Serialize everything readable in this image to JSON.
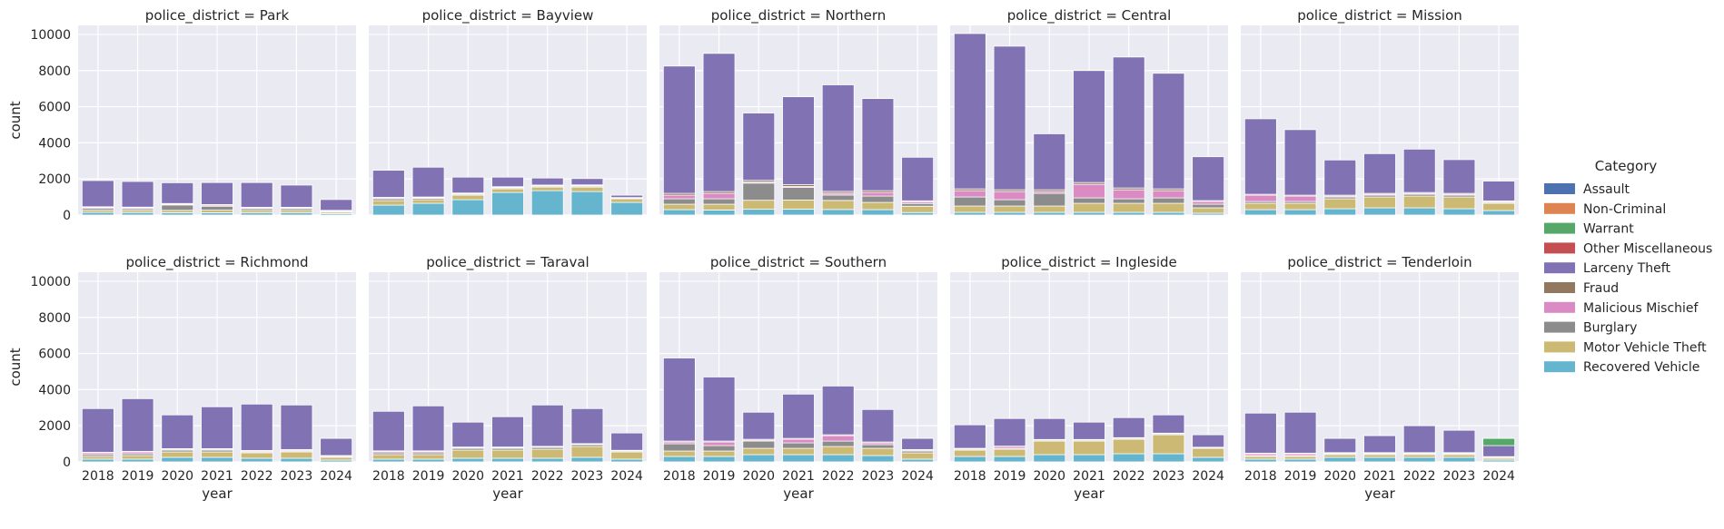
{
  "chart_data": {
    "type": "bar",
    "stacked": true,
    "facet_variable": "police_district",
    "xlabel": "year",
    "ylabel": "count",
    "ylim": [
      0,
      10500
    ],
    "yticks": [
      0,
      2000,
      4000,
      6000,
      8000,
      10000
    ],
    "categories": [
      "2018",
      "2019",
      "2020",
      "2021",
      "2022",
      "2023",
      "2024"
    ],
    "grid": true,
    "background": "#EAEAF2",
    "legend": {
      "title": "Category",
      "placement": "right"
    },
    "series": [
      {
        "name": "Assault",
        "color": "#4C72B0"
      },
      {
        "name": "Non-Criminal",
        "color": "#DD8452"
      },
      {
        "name": "Warrant",
        "color": "#55A868"
      },
      {
        "name": "Other Miscellaneous",
        "color": "#C44E52"
      },
      {
        "name": "Larceny Theft",
        "color": "#8172B3"
      },
      {
        "name": "Fraud",
        "color": "#937860"
      },
      {
        "name": "Malicious Mischief",
        "color": "#DA8BC3"
      },
      {
        "name": "Burglary",
        "color": "#8C8C8C"
      },
      {
        "name": "Motor Vehicle Theft",
        "color": "#CCB974"
      },
      {
        "name": "Recovered Vehicle",
        "color": "#64B5CD"
      }
    ],
    "panels": [
      {
        "title": "police_district = Park",
        "values": {
          "Recovered Vehicle": [
            150,
            140,
            130,
            130,
            120,
            120,
            80
          ],
          "Motor Vehicle Theft": [
            120,
            120,
            130,
            140,
            130,
            130,
            80
          ],
          "Burglary": [
            100,
            90,
            300,
            220,
            100,
            100,
            50
          ],
          "Malicious Mischief": [
            60,
            60,
            50,
            60,
            50,
            50,
            30
          ],
          "Fraud": [
            30,
            30,
            30,
            30,
            30,
            30,
            20
          ],
          "Larceny Theft": [
            1450,
            1420,
            1150,
            1220,
            1370,
            1230,
            600
          ]
        },
        "totals": [
          1950,
          1900,
          1850,
          1850,
          1850,
          1700,
          900
        ]
      },
      {
        "title": "police_district = Bayview",
        "values": {
          "Recovered Vehicle": [
            550,
            650,
            850,
            1250,
            1350,
            1300,
            700
          ],
          "Motor Vehicle Theft": [
            250,
            200,
            250,
            200,
            200,
            250,
            200
          ],
          "Burglary": [
            100,
            80,
            50,
            50,
            50,
            50,
            30
          ],
          "Malicious Mischief": [
            50,
            40,
            40,
            40,
            30,
            40,
            20
          ],
          "Fraud": [
            30,
            30,
            30,
            30,
            30,
            30,
            20
          ],
          "Larceny Theft": [
            1500,
            1650,
            880,
            530,
            390,
            350,
            130
          ]
        },
        "totals": [
          2480,
          2650,
          2100,
          2100,
          2050,
          2020,
          1100
        ]
      },
      {
        "title": "police_district = Northern",
        "values": {
          "Recovered Vehicle": [
            300,
            280,
            320,
            330,
            310,
            300,
            140
          ],
          "Motor Vehicle Theft": [
            300,
            320,
            500,
            500,
            500,
            400,
            350
          ],
          "Burglary": [
            300,
            300,
            950,
            700,
            300,
            350,
            150
          ],
          "Malicious Mischief": [
            200,
            300,
            50,
            50,
            100,
            200,
            100
          ],
          "Fraud": [
            100,
            100,
            100,
            100,
            100,
            100,
            50
          ],
          "Larceny Theft": [
            7050,
            7650,
            3730,
            4870,
            5900,
            5100,
            2410
          ]
        },
        "totals": [
          8250,
          8950,
          5650,
          6550,
          7210,
          6450,
          3200
        ]
      },
      {
        "title": "police_district = Central",
        "values": {
          "Recovered Vehicle": [
            150,
            150,
            150,
            150,
            150,
            150,
            100
          ],
          "Motor Vehicle Theft": [
            350,
            350,
            350,
            500,
            500,
            500,
            300
          ],
          "Burglary": [
            500,
            350,
            700,
            300,
            250,
            300,
            200
          ],
          "Malicious Mischief": [
            350,
            450,
            100,
            750,
            500,
            400,
            150
          ],
          "Fraud": [
            100,
            100,
            100,
            100,
            100,
            100,
            50
          ],
          "Larceny Theft": [
            8600,
            7950,
            3100,
            6200,
            7250,
            6400,
            2430
          ]
        },
        "totals": [
          10050,
          9350,
          4500,
          8000,
          8750,
          7850,
          3230
        ]
      },
      {
        "title": "police_district = Mission",
        "values": {
          "Recovered Vehicle": [
            300,
            300,
            350,
            400,
            400,
            350,
            250
          ],
          "Motor Vehicle Theft": [
            350,
            350,
            550,
            600,
            650,
            650,
            400
          ],
          "Burglary": [
            100,
            100,
            100,
            100,
            100,
            100,
            50
          ],
          "Malicious Mischief": [
            350,
            300,
            50,
            50,
            50,
            50,
            50
          ],
          "Fraud": [
            50,
            50,
            50,
            50,
            50,
            50,
            30
          ],
          "Larceny Theft": [
            4180,
            3630,
            1950,
            2200,
            2400,
            1870,
            1100
          ]
        },
        "totals": [
          5330,
          4730,
          3050,
          3400,
          3650,
          3070,
          1880
        ]
      },
      {
        "title": "police_district = Richmond",
        "values": {
          "Recovered Vehicle": [
            150,
            150,
            250,
            250,
            200,
            200,
            100
          ],
          "Motor Vehicle Theft": [
            150,
            200,
            300,
            300,
            300,
            350,
            150
          ],
          "Burglary": [
            100,
            100,
            100,
            100,
            50,
            50,
            50
          ],
          "Malicious Mischief": [
            100,
            100,
            50,
            50,
            50,
            50,
            30
          ],
          "Fraud": [
            30,
            30,
            30,
            30,
            30,
            30,
            20
          ],
          "Larceny Theft": [
            2420,
            2920,
            1870,
            2320,
            2570,
            2470,
            950
          ]
        },
        "totals": [
          2950,
          3500,
          2600,
          3050,
          3200,
          3150,
          1300
        ]
      },
      {
        "title": "police_district = Taraval",
        "values": {
          "Recovered Vehicle": [
            150,
            150,
            200,
            200,
            200,
            250,
            150
          ],
          "Motor Vehicle Theft": [
            250,
            250,
            450,
            450,
            500,
            600,
            400
          ],
          "Burglary": [
            100,
            100,
            100,
            100,
            100,
            100,
            50
          ],
          "Malicious Mischief": [
            80,
            80,
            40,
            40,
            30,
            30,
            20
          ],
          "Fraud": [
            30,
            30,
            30,
            30,
            30,
            30,
            20
          ],
          "Larceny Theft": [
            2190,
            2490,
            1380,
            1680,
            2290,
            1940,
            960
          ]
        },
        "totals": [
          2800,
          3100,
          2200,
          2500,
          3150,
          2950,
          1600
        ]
      },
      {
        "title": "police_district = Southern",
        "values": {
          "Recovered Vehicle": [
            300,
            300,
            400,
            400,
            400,
            350,
            150
          ],
          "Motor Vehicle Theft": [
            300,
            300,
            350,
            350,
            450,
            400,
            350
          ],
          "Burglary": [
            400,
            300,
            400,
            300,
            300,
            200,
            100
          ],
          "Malicious Mischief": [
            100,
            200,
            50,
            200,
            300,
            100,
            50
          ],
          "Fraud": [
            50,
            50,
            50,
            50,
            50,
            50,
            30
          ],
          "Larceny Theft": [
            4600,
            3550,
            1500,
            2450,
            2700,
            1800,
            620
          ]
        },
        "totals": [
          5750,
          4700,
          2750,
          3750,
          4200,
          2900,
          1300
        ]
      },
      {
        "title": "police_district = Ingleside",
        "values": {
          "Recovered Vehicle": [
            300,
            300,
            400,
            400,
            450,
            450,
            250
          ],
          "Motor Vehicle Theft": [
            350,
            400,
            750,
            750,
            800,
            1050,
            500
          ],
          "Burglary": [
            50,
            50,
            50,
            50,
            50,
            50,
            30
          ],
          "Malicious Mischief": [
            30,
            100,
            20,
            20,
            20,
            20,
            20
          ],
          "Fraud": [
            20,
            20,
            20,
            20,
            20,
            20,
            10
          ],
          "Larceny Theft": [
            1300,
            1530,
            1160,
            960,
            1110,
            1010,
            690
          ]
        },
        "totals": [
          2050,
          2400,
          2400,
          2200,
          2450,
          2600,
          1500
        ]
      },
      {
        "title": "police_district = Tenderloin",
        "values": {
          "Recovered Vehicle": [
            150,
            150,
            250,
            250,
            250,
            250,
            100
          ],
          "Warrant": [
            0,
            0,
            0,
            0,
            0,
            0,
            400
          ],
          "Motor Vehicle Theft": [
            150,
            150,
            150,
            150,
            150,
            150,
            100
          ],
          "Burglary": [
            50,
            50,
            50,
            50,
            50,
            50,
            50
          ],
          "Malicious Mischief": [
            100,
            100,
            30,
            30,
            30,
            30,
            20
          ],
          "Fraud": [
            30,
            30,
            30,
            30,
            30,
            30,
            20
          ],
          "Larceny Theft": [
            2220,
            2270,
            790,
            940,
            1490,
            1240,
            610
          ]
        },
        "totals": [
          2700,
          2750,
          1300,
          1450,
          2000,
          1750,
          1300
        ]
      }
    ]
  }
}
